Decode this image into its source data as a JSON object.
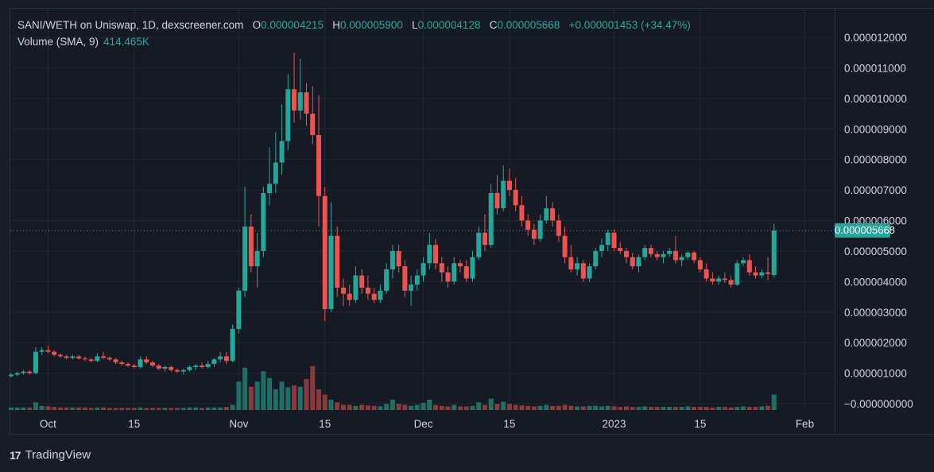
{
  "legend": {
    "pair": "SANI/WETH on Uniswap, 1D, dexscreener.com",
    "o_label": "O",
    "o_value": "0.000004215",
    "h_label": "H",
    "h_value": "0.000005900",
    "l_label": "L",
    "l_value": "0.000004128",
    "c_label": "C",
    "c_value": "0.000005668",
    "change": "+0.000001453 (+34.47%)"
  },
  "volume_legend": {
    "label": "Volume (SMA, 9)",
    "value": "414.465K"
  },
  "last_price_tag": "0.000005668",
  "brand": {
    "logo": "17",
    "name": "TradingView"
  },
  "colors": {
    "up": "#26a69a",
    "down": "#ef5350",
    "background": "#161a25",
    "grid": "#232733",
    "text": "#d1d4dc"
  },
  "chart_data": {
    "type": "candlestick",
    "title": "SANI/WETH on Uniswap, 1D, dexscreener.com",
    "y_ticks": [
      "0.000012000",
      "0.000011000",
      "0.000010000",
      "0.000009000",
      "0.000008000",
      "0.000007000",
      "0.000006000",
      "0.000005000",
      "0.000004000",
      "0.000003000",
      "0.000002000",
      "0.000001000",
      "−0.000000000"
    ],
    "ylim": [
      0,
      1.3e-05
    ],
    "x_ticks": [
      {
        "label": "Oct",
        "index": 6
      },
      {
        "label": "15",
        "index": 20
      },
      {
        "label": "Nov",
        "index": 37
      },
      {
        "label": "15",
        "index": 51
      },
      {
        "label": "Dec",
        "index": 67
      },
      {
        "label": "15",
        "index": 81
      },
      {
        "label": "2023",
        "index": 98
      },
      {
        "label": "15",
        "index": 112
      },
      {
        "label": "Feb",
        "index": 129
      }
    ],
    "grid": true,
    "candles_ohlc_e6": [
      [
        0.9,
        1.0,
        0.85,
        0.95
      ],
      [
        0.95,
        1.05,
        0.9,
        1.0
      ],
      [
        1.0,
        1.1,
        0.95,
        1.05
      ],
      [
        1.05,
        1.1,
        0.95,
        1.0
      ],
      [
        1.0,
        1.85,
        0.95,
        1.7
      ],
      [
        1.7,
        1.85,
        1.6,
        1.75
      ],
      [
        1.75,
        1.9,
        1.65,
        1.7
      ],
      [
        1.7,
        1.75,
        1.55,
        1.6
      ],
      [
        1.6,
        1.65,
        1.5,
        1.55
      ],
      [
        1.55,
        1.6,
        1.45,
        1.5
      ],
      [
        1.5,
        1.6,
        1.45,
        1.55
      ],
      [
        1.55,
        1.6,
        1.45,
        1.48
      ],
      [
        1.48,
        1.55,
        1.4,
        1.45
      ],
      [
        1.45,
        1.5,
        1.35,
        1.4
      ],
      [
        1.4,
        1.65,
        1.35,
        1.55
      ],
      [
        1.55,
        1.7,
        1.45,
        1.5
      ],
      [
        1.5,
        1.55,
        1.4,
        1.45
      ],
      [
        1.45,
        1.5,
        1.3,
        1.35
      ],
      [
        1.35,
        1.4,
        1.25,
        1.3
      ],
      [
        1.3,
        1.35,
        1.2,
        1.25
      ],
      [
        1.25,
        1.3,
        1.15,
        1.2
      ],
      [
        1.2,
        1.55,
        1.15,
        1.45
      ],
      [
        1.45,
        1.55,
        1.3,
        1.35
      ],
      [
        1.35,
        1.4,
        1.2,
        1.25
      ],
      [
        1.25,
        1.3,
        1.1,
        1.15
      ],
      [
        1.15,
        1.25,
        1.05,
        1.2
      ],
      [
        1.2,
        1.25,
        1.05,
        1.1
      ],
      [
        1.1,
        1.15,
        1.0,
        1.05
      ],
      [
        1.05,
        1.15,
        0.95,
        1.1
      ],
      [
        1.1,
        1.25,
        1.05,
        1.2
      ],
      [
        1.2,
        1.3,
        1.1,
        1.25
      ],
      [
        1.25,
        1.35,
        1.15,
        1.2
      ],
      [
        1.2,
        1.4,
        1.15,
        1.3
      ],
      [
        1.3,
        1.5,
        1.2,
        1.45
      ],
      [
        1.45,
        1.7,
        1.35,
        1.55
      ],
      [
        1.55,
        1.7,
        1.3,
        1.4
      ],
      [
        1.4,
        2.6,
        1.35,
        2.45
      ],
      [
        2.45,
        3.8,
        2.3,
        3.7
      ],
      [
        3.7,
        7.1,
        3.5,
        5.8
      ],
      [
        5.8,
        6.2,
        4.3,
        4.5
      ],
      [
        4.5,
        5.6,
        3.8,
        5.0
      ],
      [
        5.0,
        7.1,
        4.8,
        6.9
      ],
      [
        6.9,
        8.4,
        6.5,
        7.2
      ],
      [
        7.2,
        8.9,
        6.9,
        7.9
      ],
      [
        7.9,
        9.8,
        7.5,
        8.6
      ],
      [
        8.6,
        10.8,
        8.3,
        10.3
      ],
      [
        10.3,
        11.5,
        9.2,
        9.6
      ],
      [
        9.6,
        11.3,
        9.3,
        10.2
      ],
      [
        10.2,
        10.5,
        9.1,
        9.5
      ],
      [
        9.5,
        10.4,
        8.5,
        8.8
      ],
      [
        8.8,
        10.1,
        5.8,
        6.8
      ],
      [
        6.8,
        7.1,
        2.7,
        3.1
      ],
      [
        3.1,
        6.6,
        3.0,
        5.5
      ],
      [
        5.5,
        5.8,
        3.5,
        3.8
      ],
      [
        3.8,
        4.1,
        3.2,
        3.6
      ],
      [
        3.6,
        3.9,
        3.2,
        3.4
      ],
      [
        3.4,
        4.5,
        3.3,
        4.2
      ],
      [
        4.2,
        4.4,
        3.6,
        3.8
      ],
      [
        3.8,
        4.2,
        3.4,
        3.6
      ],
      [
        3.6,
        3.8,
        3.3,
        3.4
      ],
      [
        3.4,
        3.9,
        3.3,
        3.7
      ],
      [
        3.7,
        4.6,
        3.6,
        4.4
      ],
      [
        4.4,
        5.2,
        4.1,
        5.0
      ],
      [
        5.0,
        5.2,
        4.3,
        4.5
      ],
      [
        4.5,
        4.7,
        3.5,
        3.7
      ],
      [
        3.7,
        4.2,
        3.2,
        3.9
      ],
      [
        3.9,
        4.4,
        3.7,
        4.2
      ],
      [
        4.2,
        4.8,
        4.0,
        4.6
      ],
      [
        4.6,
        5.6,
        4.4,
        5.2
      ],
      [
        5.2,
        5.4,
        4.4,
        4.6
      ],
      [
        4.6,
        4.8,
        4.0,
        4.3
      ],
      [
        4.3,
        4.5,
        3.8,
        4.0
      ],
      [
        4.0,
        4.8,
        3.9,
        4.6
      ],
      [
        4.6,
        4.7,
        4.3,
        4.5
      ],
      [
        4.5,
        4.7,
        4.0,
        4.1
      ],
      [
        4.1,
        5.0,
        4.0,
        4.8
      ],
      [
        4.8,
        5.8,
        4.7,
        5.6
      ],
      [
        5.6,
        6.2,
        5.0,
        5.2
      ],
      [
        5.2,
        7.2,
        5.1,
        6.9
      ],
      [
        6.9,
        7.5,
        6.2,
        6.4
      ],
      [
        6.4,
        7.8,
        6.3,
        7.3
      ],
      [
        7.3,
        7.7,
        6.8,
        7.0
      ],
      [
        7.0,
        7.4,
        6.3,
        6.5
      ],
      [
        6.5,
        6.8,
        5.8,
        6.0
      ],
      [
        6.0,
        6.2,
        5.5,
        5.7
      ],
      [
        5.7,
        5.9,
        5.2,
        5.4
      ],
      [
        5.4,
        6.2,
        5.3,
        6.0
      ],
      [
        6.0,
        6.8,
        5.9,
        6.4
      ],
      [
        6.4,
        6.6,
        5.8,
        6.0
      ],
      [
        6.0,
        6.2,
        5.3,
        5.5
      ],
      [
        5.5,
        5.8,
        4.6,
        4.8
      ],
      [
        4.8,
        5.2,
        4.3,
        4.4
      ],
      [
        4.4,
        4.8,
        4.2,
        4.6
      ],
      [
        4.6,
        4.7,
        4.0,
        4.1
      ],
      [
        4.1,
        4.6,
        4.0,
        4.5
      ],
      [
        4.5,
        5.1,
        4.4,
        5.0
      ],
      [
        5.0,
        5.4,
        4.8,
        5.2
      ],
      [
        5.2,
        5.7,
        5.0,
        5.6
      ],
      [
        5.6,
        5.7,
        5.0,
        5.1
      ],
      [
        5.1,
        5.3,
        4.9,
        5.0
      ],
      [
        5.0,
        5.1,
        4.6,
        4.8
      ],
      [
        4.8,
        4.95,
        4.4,
        4.5
      ],
      [
        4.5,
        4.9,
        4.3,
        4.8
      ],
      [
        4.8,
        5.2,
        4.7,
        5.1
      ],
      [
        5.1,
        5.2,
        4.8,
        4.9
      ],
      [
        4.9,
        5.0,
        4.7,
        4.8
      ],
      [
        4.8,
        5.0,
        4.6,
        4.9
      ],
      [
        4.9,
        5.1,
        4.8,
        5.0
      ],
      [
        5.0,
        5.5,
        4.6,
        4.7
      ],
      [
        4.7,
        4.9,
        4.5,
        4.8
      ],
      [
        4.8,
        5.0,
        4.7,
        4.95
      ],
      [
        4.95,
        5.0,
        4.6,
        4.7
      ],
      [
        4.7,
        4.8,
        4.3,
        4.4
      ],
      [
        4.4,
        4.6,
        4.0,
        4.1
      ],
      [
        4.1,
        4.3,
        3.9,
        4.0
      ],
      [
        4.0,
        4.2,
        3.9,
        4.1
      ],
      [
        4.1,
        4.3,
        3.95,
        4.05
      ],
      [
        4.05,
        4.2,
        3.8,
        3.9
      ],
      [
        3.9,
        4.7,
        3.85,
        4.6
      ],
      [
        4.6,
        4.8,
        4.5,
        4.7
      ],
      [
        4.7,
        4.9,
        4.2,
        4.3
      ],
      [
        4.3,
        4.5,
        4.1,
        4.2
      ],
      [
        4.2,
        4.4,
        4.1,
        4.3
      ],
      [
        4.3,
        4.8,
        4.05,
        4.25
      ],
      [
        4.215,
        5.9,
        4.128,
        5.668
      ]
    ],
    "volume_relative": [
      0.05,
      0.05,
      0.05,
      0.05,
      0.15,
      0.08,
      0.07,
      0.06,
      0.05,
      0.05,
      0.05,
      0.05,
      0.05,
      0.04,
      0.05,
      0.05,
      0.04,
      0.04,
      0.04,
      0.04,
      0.04,
      0.05,
      0.04,
      0.04,
      0.04,
      0.04,
      0.04,
      0.04,
      0.04,
      0.05,
      0.05,
      0.04,
      0.05,
      0.05,
      0.05,
      0.06,
      0.1,
      0.55,
      0.82,
      0.45,
      0.55,
      0.75,
      0.62,
      0.4,
      0.55,
      0.44,
      0.48,
      0.45,
      0.6,
      0.85,
      0.4,
      0.3,
      0.2,
      0.15,
      0.1,
      0.1,
      0.08,
      0.1,
      0.09,
      0.08,
      0.07,
      0.12,
      0.2,
      0.12,
      0.1,
      0.08,
      0.1,
      0.14,
      0.2,
      0.1,
      0.08,
      0.07,
      0.1,
      0.07,
      0.07,
      0.08,
      0.15,
      0.1,
      0.22,
      0.12,
      0.16,
      0.12,
      0.1,
      0.09,
      0.08,
      0.07,
      0.08,
      0.1,
      0.08,
      0.08,
      0.1,
      0.08,
      0.07,
      0.07,
      0.08,
      0.08,
      0.07,
      0.08,
      0.07,
      0.06,
      0.07,
      0.06,
      0.06,
      0.07,
      0.06,
      0.06,
      0.06,
      0.06,
      0.06,
      0.06,
      0.07,
      0.06,
      0.06,
      0.06,
      0.05,
      0.06,
      0.06,
      0.05,
      0.06,
      0.07,
      0.06,
      0.06,
      0.07,
      0.08,
      0.3
    ]
  }
}
